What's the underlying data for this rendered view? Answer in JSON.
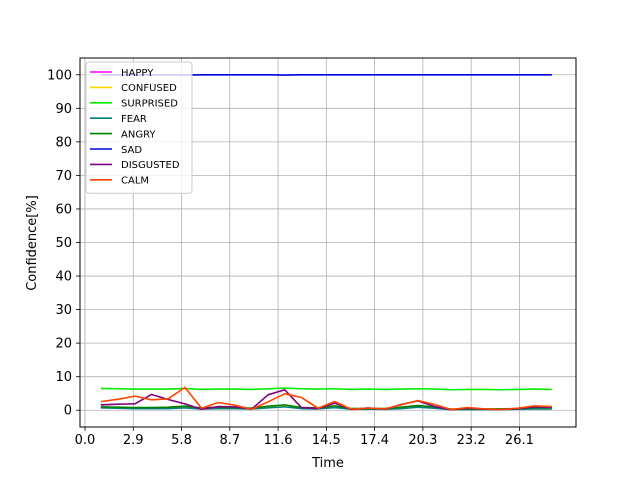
{
  "chart_data": {
    "type": "line",
    "title": "",
    "xlabel": "Time",
    "ylabel": "Confidence[%]",
    "xlim": [
      -0.3,
      29.5
    ],
    "ylim": [
      -5,
      105
    ],
    "xticks": [
      0.0,
      2.9,
      5.8,
      8.7,
      11.6,
      14.5,
      17.4,
      20.3,
      23.2,
      26.1
    ],
    "xtick_labels": [
      "0.0",
      "2.9",
      "5.8",
      "8.7",
      "11.6",
      "14.5",
      "17.4",
      "20.3",
      "23.2",
      "26.1"
    ],
    "yticks": [
      0,
      10,
      20,
      30,
      40,
      50,
      60,
      70,
      80,
      90,
      100
    ],
    "ytick_labels": [
      "0",
      "10",
      "20",
      "30",
      "40",
      "50",
      "60",
      "70",
      "80",
      "90",
      "100"
    ],
    "grid": true,
    "legend_position": "upper-left",
    "x": [
      1.0,
      2.0,
      3.0,
      4.0,
      5.0,
      6.0,
      7.0,
      8.0,
      9.0,
      10.0,
      11.0,
      12.0,
      13.0,
      14.0,
      15.0,
      16.0,
      17.0,
      18.0,
      19.0,
      20.0,
      21.0,
      22.0,
      23.0,
      24.0,
      25.0,
      26.0,
      27.0,
      28.0
    ],
    "series": [
      {
        "name": "HAPPY",
        "color": "#ff00ff",
        "values": [
          0.8,
          0.7,
          0.6,
          0.6,
          0.6,
          0.8,
          0.5,
          0.6,
          0.6,
          0.5,
          0.8,
          1.2,
          0.6,
          0.5,
          0.9,
          0.4,
          0.4,
          0.4,
          0.6,
          1.0,
          0.7,
          0.3,
          0.3,
          0.3,
          0.3,
          0.4,
          0.5,
          0.5
        ]
      },
      {
        "name": "CONFUSED",
        "color": "#ffd700",
        "values": [
          0.9,
          0.8,
          0.7,
          0.7,
          0.7,
          0.9,
          0.6,
          0.7,
          0.7,
          0.6,
          1.0,
          1.4,
          0.7,
          0.6,
          1.0,
          0.5,
          0.5,
          0.5,
          0.7,
          1.1,
          0.8,
          0.4,
          0.4,
          0.4,
          0.4,
          0.5,
          0.6,
          0.6
        ]
      },
      {
        "name": "SURPRISED",
        "color": "#00ee00",
        "values": [
          6.5,
          6.4,
          6.3,
          6.3,
          6.3,
          6.5,
          6.2,
          6.3,
          6.3,
          6.2,
          6.4,
          6.6,
          6.4,
          6.3,
          6.4,
          6.2,
          6.3,
          6.2,
          6.3,
          6.4,
          6.3,
          6.1,
          6.2,
          6.2,
          6.1,
          6.2,
          6.3,
          6.2
        ]
      },
      {
        "name": "FEAR",
        "color": "#008080",
        "values": [
          0.7,
          0.6,
          0.5,
          0.5,
          0.5,
          0.7,
          0.4,
          0.5,
          0.5,
          0.4,
          0.7,
          1.0,
          0.5,
          0.4,
          0.8,
          0.3,
          0.3,
          0.3,
          0.5,
          0.9,
          0.6,
          0.2,
          0.2,
          0.2,
          0.2,
          0.3,
          0.4,
          0.4
        ]
      },
      {
        "name": "ANGRY",
        "color": "#008000",
        "values": [
          1.0,
          0.9,
          0.8,
          0.8,
          0.9,
          1.2,
          0.7,
          0.9,
          0.8,
          0.6,
          1.2,
          1.6,
          0.8,
          0.7,
          1.3,
          0.5,
          0.5,
          0.5,
          0.9,
          1.4,
          1.0,
          0.3,
          0.4,
          0.4,
          0.4,
          0.5,
          0.8,
          0.8
        ]
      },
      {
        "name": "SAD",
        "color": "#0000dd",
        "values": [
          100,
          100,
          100,
          100,
          100,
          99.9,
          100,
          100,
          100,
          100,
          100,
          99.9,
          100,
          100,
          100,
          100,
          100,
          100,
          100,
          100,
          100,
          100,
          100,
          100,
          100,
          100,
          100,
          100
        ]
      },
      {
        "name": "DISGUSTED",
        "color": "#800080",
        "values": [
          1.6,
          1.8,
          1.9,
          4.7,
          3.2,
          1.9,
          0.3,
          1.1,
          1.0,
          0.3,
          4.6,
          6.1,
          0.8,
          0.5,
          2.1,
          0.2,
          0.7,
          0.3,
          1.7,
          2.8,
          1.1,
          0.1,
          0.6,
          0.3,
          0.2,
          0.5,
          1.0,
          0.9
        ]
      },
      {
        "name": "CALM",
        "color": "#ff4500",
        "values": [
          2.6,
          3.3,
          4.2,
          3.1,
          3.4,
          6.8,
          0.6,
          2.3,
          1.5,
          0.3,
          2.5,
          4.9,
          3.8,
          0.6,
          2.6,
          0.3,
          0.6,
          0.4,
          1.6,
          2.9,
          1.7,
          0.2,
          0.8,
          0.4,
          0.2,
          0.6,
          1.3,
          1.1
        ]
      }
    ]
  }
}
